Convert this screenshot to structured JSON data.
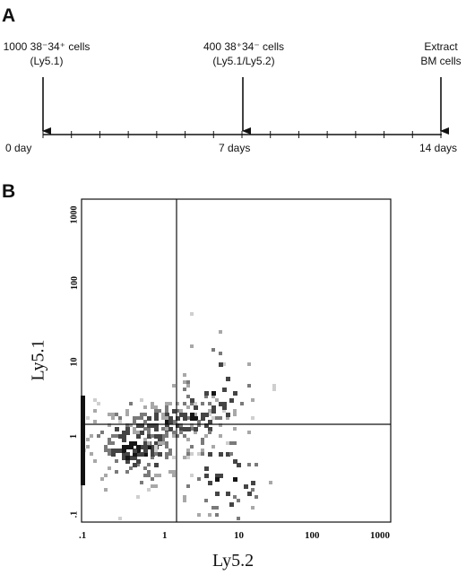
{
  "panel_a": {
    "label": "A",
    "events": [
      {
        "line1": "1000 38⁻34⁺ cells",
        "line2": "(Ly5.1)"
      },
      {
        "line1": "400 38⁺34⁻ cells",
        "line2": "(Ly5.1/Ly5.2)"
      },
      {
        "line1": "Extract",
        "line2": "BM cells"
      }
    ],
    "time_labels": [
      "0 day",
      "7 days",
      "14 days"
    ]
  },
  "panel_b": {
    "label": "B",
    "xlabel": "Ly5.2",
    "ylabel": "Ly5.1",
    "xticks": [
      ".1",
      "1",
      "10",
      "100",
      "1000"
    ],
    "yticks": [
      ".1",
      "1",
      "10",
      "100",
      "1000"
    ]
  },
  "chart_data": {
    "type": "scatter",
    "xlabel": "Ly5.2",
    "ylabel": "Ly5.1",
    "xscale": "log",
    "yscale": "log",
    "xlim": [
      0.1,
      1400
    ],
    "ylim": [
      0.1,
      1400
    ],
    "quadrant_gate": {
      "x": 1.4,
      "y": 1.4
    },
    "clusters": [
      {
        "x": 0.5,
        "y": 1.0,
        "sx": 0.35,
        "sy": 0.3,
        "n": 170
      },
      {
        "x": 1.2,
        "y": 2.0,
        "sx": 0.25,
        "sy": 0.15,
        "n": 75
      },
      {
        "x": 3.0,
        "y": 2.3,
        "sx": 0.25,
        "sy": 0.25,
        "n": 50
      },
      {
        "x": 8.0,
        "y": 0.4,
        "sx": 0.35,
        "sy": 0.4,
        "n": 60
      },
      {
        "x": 6.0,
        "y": 5.0,
        "sx": 0.3,
        "sy": 0.4,
        "n": 40
      }
    ]
  }
}
